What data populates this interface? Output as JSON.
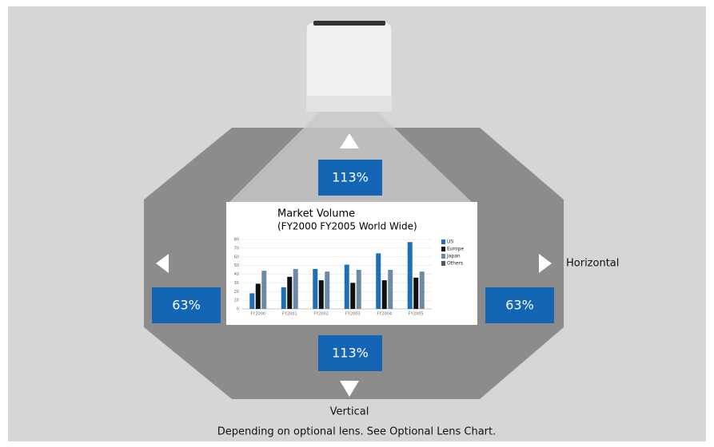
{
  "diagram": {
    "shift_up": "113%",
    "shift_down": "113%",
    "shift_left": "63%",
    "shift_right": "63%",
    "horizontal_label": "Horizontal",
    "vertical_label": "Vertical",
    "caption": "Depending on optional lens. See Optional Lens Chart."
  },
  "chart_data": {
    "type": "bar",
    "title": "Market Volume",
    "subtitle": "(FY2000 FY2005 World Wide)",
    "categories": [
      "FY2000",
      "FY2001",
      "FY2002",
      "FY2003",
      "FY2004",
      "FY2005"
    ],
    "series": [
      {
        "name": "US",
        "color": "#1f6fb8",
        "values": [
          18,
          25,
          46,
          51,
          64,
          77
        ]
      },
      {
        "name": "Europe",
        "color": "#111111",
        "values": [
          29,
          37,
          33,
          30,
          33,
          36
        ]
      },
      {
        "name": "Japan",
        "color": "#6c8aa6",
        "values": [
          44,
          46,
          43,
          45,
          45,
          43
        ]
      },
      {
        "name": "Others",
        "color": "#555555",
        "values": [
          null,
          null,
          null,
          null,
          null,
          null
        ]
      }
    ],
    "ylim": [
      0,
      80
    ],
    "yticks": [
      0,
      10,
      20,
      30,
      40,
      50,
      60,
      70,
      80
    ],
    "grid": true
  }
}
